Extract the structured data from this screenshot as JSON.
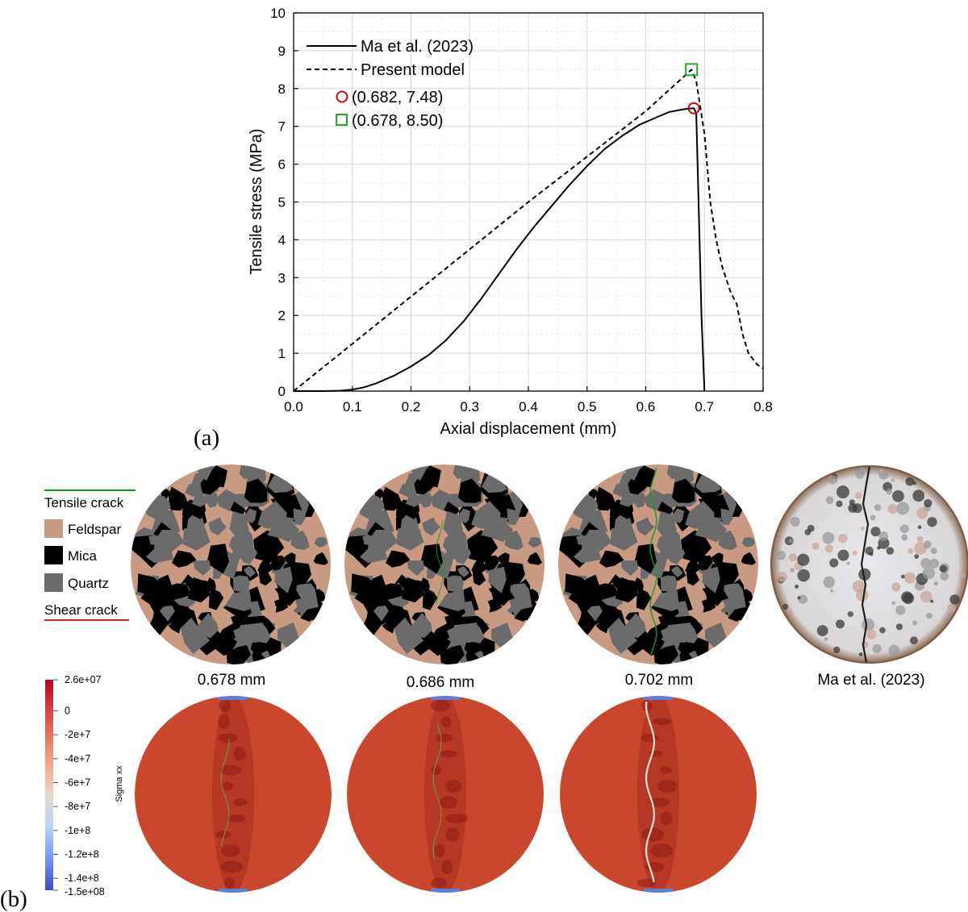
{
  "panel_labels": {
    "a": "(a)",
    "b": "(b)"
  },
  "chart_data": {
    "type": "line",
    "xlabel": "Axial displacement (mm)",
    "ylabel": "Tensile stress (MPa)",
    "xlim": [
      0.0,
      0.8
    ],
    "ylim": [
      0,
      10
    ],
    "xticks": [
      "0.0",
      "0.1",
      "0.2",
      "0.3",
      "0.4",
      "0.5",
      "0.6",
      "0.7",
      "0.8"
    ],
    "yticks": [
      "0",
      "1",
      "2",
      "3",
      "4",
      "5",
      "6",
      "7",
      "8",
      "9",
      "10"
    ],
    "grid": true,
    "legend_position": "top-left",
    "series": [
      {
        "name": "Ma et al. (2023)",
        "style": "solid",
        "color": "#000000",
        "x": [
          0.0,
          0.05,
          0.08,
          0.1,
          0.12,
          0.14,
          0.17,
          0.2,
          0.23,
          0.26,
          0.29,
          0.32,
          0.35,
          0.38,
          0.41,
          0.44,
          0.47,
          0.5,
          0.53,
          0.56,
          0.59,
          0.62,
          0.64,
          0.66,
          0.672,
          0.682,
          0.686,
          0.69,
          0.695,
          0.7
        ],
        "y": [
          0.0,
          0.0,
          0.01,
          0.04,
          0.1,
          0.2,
          0.4,
          0.65,
          0.95,
          1.35,
          1.85,
          2.45,
          3.1,
          3.75,
          4.35,
          4.9,
          5.45,
          5.95,
          6.4,
          6.75,
          7.05,
          7.25,
          7.38,
          7.44,
          7.47,
          7.48,
          7.35,
          5.0,
          2.0,
          0.0
        ]
      },
      {
        "name": "Present model",
        "style": "dashed",
        "color": "#000000",
        "x": [
          0.0,
          0.1,
          0.2,
          0.3,
          0.4,
          0.5,
          0.6,
          0.678,
          0.686,
          0.7,
          0.71,
          0.72,
          0.73,
          0.745,
          0.755,
          0.765,
          0.775,
          0.79,
          0.8
        ],
        "y": [
          0.0,
          1.25,
          2.5,
          3.75,
          5.0,
          6.2,
          7.4,
          8.5,
          8.2,
          6.8,
          5.0,
          4.0,
          3.3,
          2.6,
          2.3,
          1.5,
          1.0,
          0.7,
          0.6
        ]
      }
    ],
    "annotations": [
      {
        "label": "(0.682, 7.48)",
        "x": 0.682,
        "y": 7.48,
        "marker": "circle",
        "color": "#dd0000"
      },
      {
        "label": "(0.678, 8.50)",
        "x": 0.678,
        "y": 8.5,
        "marker": "square",
        "color": "#22aa22"
      }
    ]
  },
  "legend_b": {
    "tensile": "Tensile crack",
    "feldspar": "Feldspar",
    "mica": "Mica",
    "quartz": "Quartz",
    "shear": "Shear crack",
    "colors": {
      "tensile": "#1a9a1a",
      "feldspar": "#c99a82",
      "mica": "#000000",
      "quartz": "#6b6b6b",
      "shear": "#dd2222"
    }
  },
  "specimen_labels": [
    "0.678 mm",
    "0.686 mm",
    "0.702 mm",
    "Ma et al. (2023)"
  ],
  "colorbar": {
    "title": "Sigma xx",
    "ticks": [
      "2.6e+07",
      "0",
      "-2e+7",
      "-4e+7",
      "-6e+7",
      "-8e+7",
      "-1e+8",
      "-1.2e+8",
      "-1.4e+8",
      "-1.5e+08"
    ],
    "range": [
      -150000000,
      26000000
    ],
    "tick_values": [
      26000000,
      0,
      -20000000,
      -40000000,
      -60000000,
      -80000000,
      -100000000,
      -120000000,
      -140000000,
      -150000000
    ]
  },
  "colors": {
    "stress_field": "#c9472d",
    "stress_dark": "#8e1b14",
    "crack_line": "#f2f2e8"
  }
}
